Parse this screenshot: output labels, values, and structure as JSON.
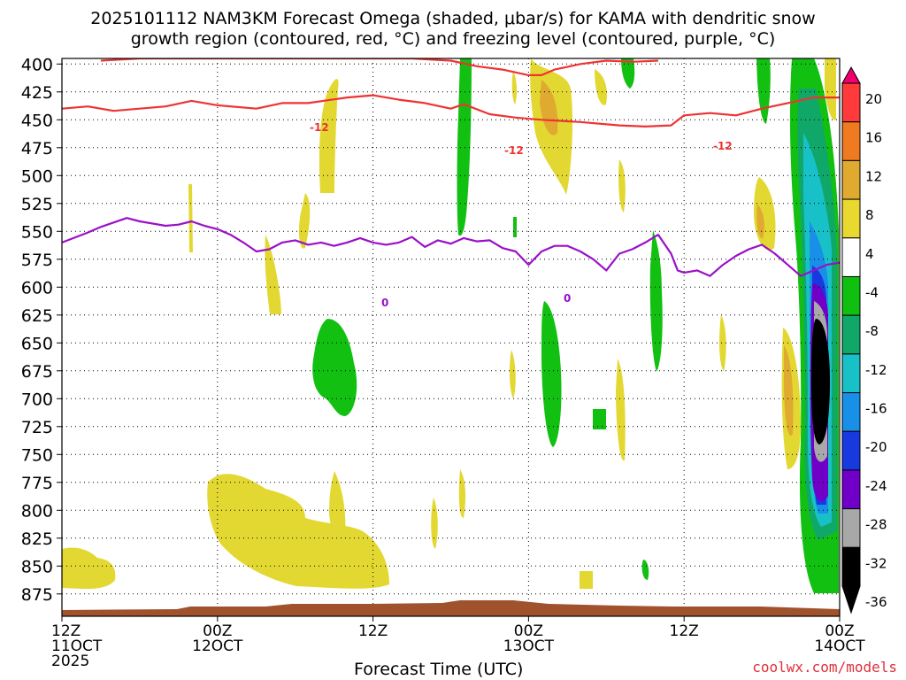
{
  "title": {
    "line1": "2025101112 NAM3KM Forecast Omega (shaded, μbar/s) for KAMA with dendritic snow",
    "line2": "growth region (contoured, red, °C) and freezing level (contoured, purple, °C)"
  },
  "credit": "coolwx.com/models",
  "chart_data": {
    "type": "heatmap",
    "xlabel": "Forecast Time (UTC)",
    "ylabel": "",
    "y_ticks": [
      400,
      425,
      450,
      475,
      500,
      525,
      550,
      575,
      600,
      625,
      650,
      675,
      700,
      725,
      750,
      775,
      800,
      825,
      850,
      875
    ],
    "x_ticks": [
      {
        "hour": 0,
        "line1": "12Z",
        "line2": "11OCT",
        "line3": "2025"
      },
      {
        "hour": 12,
        "line1": "00Z",
        "line2": "12OCT",
        "line3": ""
      },
      {
        "hour": 24,
        "line1": "12Z",
        "line2": "",
        "line3": ""
      },
      {
        "hour": 36,
        "line1": "00Z",
        "line2": "13OCT",
        "line3": ""
      },
      {
        "hour": 48,
        "line1": "12Z",
        "line2": "",
        "line3": ""
      },
      {
        "hour": 60,
        "line1": "00Z",
        "line2": "14OCT",
        "line3": ""
      }
    ],
    "x_range_hours": [
      0,
      60
    ],
    "y_range_mb": [
      395,
      895
    ],
    "grid": true,
    "colorbar": {
      "labels": [
        "20",
        "16",
        "12",
        "8",
        "4",
        "-4",
        "-8",
        "-12",
        "-16",
        "-20",
        "-24",
        "-28",
        "-32",
        "-36"
      ],
      "colors": [
        "#f0006e",
        "#ff3a3a",
        "#f07a20",
        "#e0aa30",
        "#e8d830",
        "#ffffff",
        "#10c010",
        "#10a868",
        "#18c0c8",
        "#1890e8",
        "#1838e0",
        "#7000c8",
        "#a8a8a8",
        "#000000"
      ]
    },
    "contours": [
      {
        "name": "dendritic_-12C",
        "label": "-12",
        "color": "#ee3333",
        "points": [
          [
            0,
            440
          ],
          [
            2,
            438
          ],
          [
            4,
            442
          ],
          [
            6,
            440
          ],
          [
            8,
            438
          ],
          [
            10,
            433
          ],
          [
            12,
            437
          ],
          [
            15,
            440
          ],
          [
            17,
            435
          ],
          [
            19,
            435
          ],
          [
            22,
            430
          ],
          [
            24,
            428
          ],
          [
            26,
            432
          ],
          [
            28,
            435
          ],
          [
            30,
            440
          ],
          [
            31,
            436
          ],
          [
            33,
            445
          ],
          [
            35,
            448
          ],
          [
            37,
            450
          ],
          [
            40,
            452
          ],
          [
            43,
            455
          ],
          [
            45,
            456
          ],
          [
            47,
            455
          ],
          [
            48,
            446
          ],
          [
            50,
            444
          ],
          [
            52,
            446
          ],
          [
            54,
            440
          ],
          [
            56,
            435
          ],
          [
            58,
            430
          ],
          [
            60,
            430
          ]
        ]
      },
      {
        "name": "dendritic_-12C_top",
        "label": "",
        "color": "#ee3333",
        "points": [
          [
            3,
            397
          ],
          [
            6,
            395
          ],
          [
            27,
            395
          ],
          [
            30,
            397
          ],
          [
            32,
            402
          ],
          [
            34,
            405
          ],
          [
            36,
            410
          ],
          [
            37,
            410
          ],
          [
            38,
            405
          ],
          [
            40,
            400
          ],
          [
            42,
            397
          ],
          [
            44,
            398
          ],
          [
            46,
            397
          ]
        ]
      },
      {
        "name": "freezing_level_0C",
        "label": "0",
        "color": "#9a10c8",
        "points": [
          [
            0,
            560
          ],
          [
            2,
            551
          ],
          [
            3,
            546
          ],
          [
            5,
            538
          ],
          [
            6,
            541
          ],
          [
            8,
            545
          ],
          [
            9,
            544
          ],
          [
            10,
            541
          ],
          [
            11,
            545
          ],
          [
            12,
            548
          ],
          [
            13,
            553
          ],
          [
            14,
            560
          ],
          [
            15,
            568
          ],
          [
            16,
            566
          ],
          [
            17,
            560
          ],
          [
            18,
            558
          ],
          [
            19,
            562
          ],
          [
            20,
            560
          ],
          [
            21,
            563
          ],
          [
            22,
            560
          ],
          [
            23,
            556
          ],
          [
            24,
            560
          ],
          [
            25,
            562
          ],
          [
            26,
            560
          ],
          [
            27,
            555
          ],
          [
            28,
            564
          ],
          [
            29,
            558
          ],
          [
            30,
            561
          ],
          [
            31,
            556
          ],
          [
            32,
            559
          ],
          [
            33,
            558
          ],
          [
            34,
            565
          ],
          [
            35,
            568
          ],
          [
            36,
            580
          ],
          [
            37,
            568
          ],
          [
            38,
            563
          ],
          [
            39,
            563
          ],
          [
            40,
            568
          ],
          [
            41,
            575
          ],
          [
            42,
            585
          ],
          [
            43,
            570
          ],
          [
            44,
            566
          ],
          [
            45,
            560
          ],
          [
            46,
            553
          ],
          [
            47,
            570
          ],
          [
            47.5,
            585
          ],
          [
            48,
            587
          ],
          [
            49,
            585
          ],
          [
            50,
            590
          ],
          [
            51,
            580
          ],
          [
            52,
            572
          ],
          [
            53,
            566
          ],
          [
            54,
            562
          ],
          [
            55,
            570
          ],
          [
            56,
            580
          ],
          [
            57,
            590
          ],
          [
            58,
            585
          ],
          [
            59,
            580
          ],
          [
            60,
            578
          ]
        ]
      }
    ]
  }
}
